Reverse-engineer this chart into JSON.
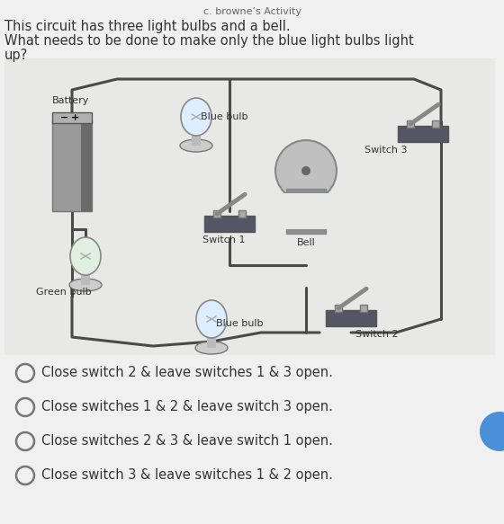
{
  "title": "c. browne’s Activity",
  "title_fontsize": 8,
  "background_color": "#f0f0f0",
  "body_text_1": "This circuit has three light bulbs and a bell.",
  "body_text_2": "What needs to be done to make only the blue light bulbs light",
  "body_text_3": "up?",
  "options": [
    "Close switch 2 & leave switches 1 & 3 open.",
    "Close switches 1 & 2 & leave switch 3 open.",
    "Close switches 2 & 3 & leave switch 1 open.",
    "Close switch 3 & leave switches 1 & 2 open."
  ],
  "option_fontsize": 10.5,
  "body_fontsize": 10.5,
  "circuit_label_fontsize": 8,
  "wire_color": "#4a4a4a",
  "circuit_bg": "#e8e8e8"
}
